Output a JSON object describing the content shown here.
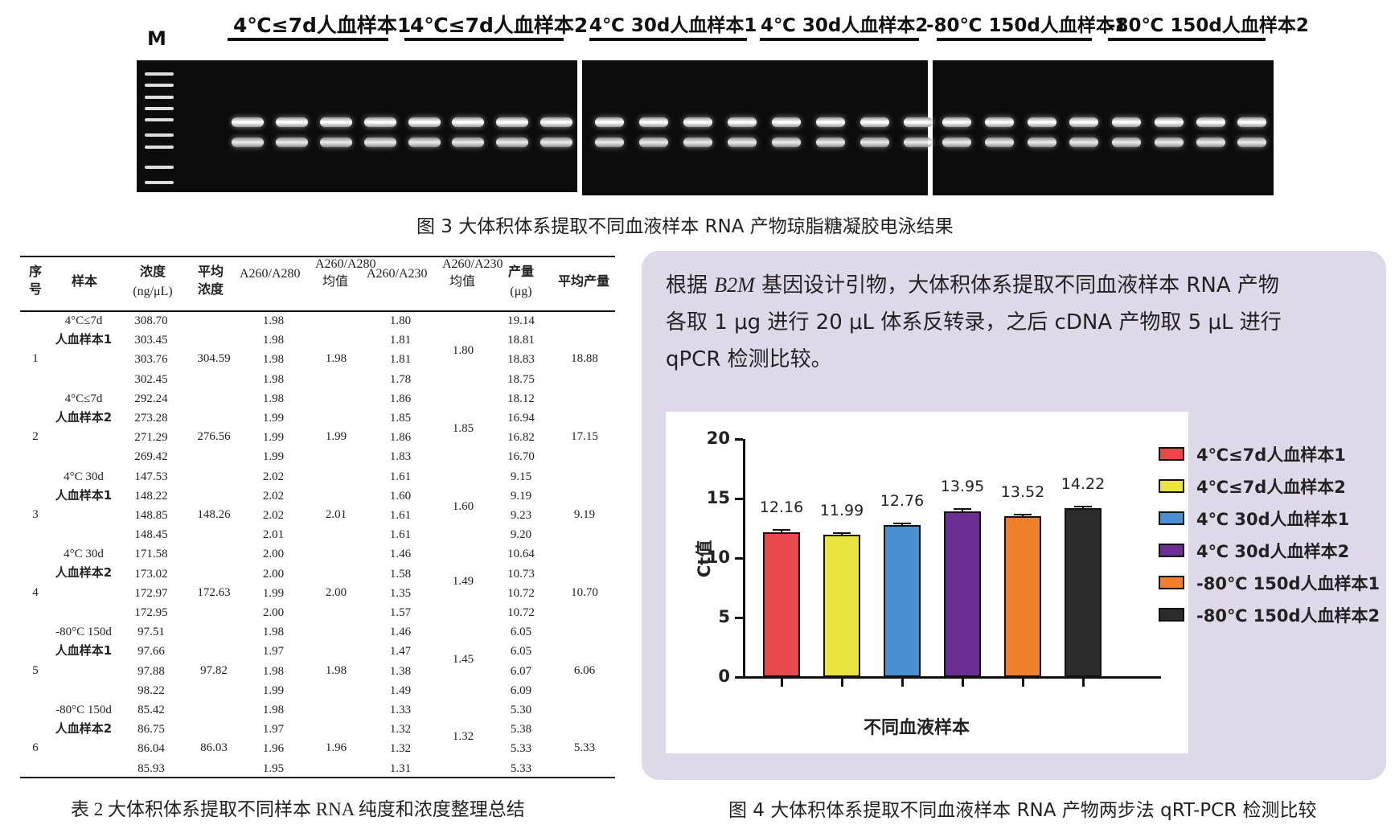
{
  "fig3": {
    "marker": "M",
    "lanes": [
      "4℃≤7d人血样本1",
      "4℃≤7d人血样本2",
      "4℃ 30d人血样本1",
      "4℃ 30d人血样本2",
      "-80℃ 150d人血样本1",
      "-80℃ 150d人血样本2"
    ],
    "caption": "图 3 大体积体系提取不同血液样本 RNA 产物琼脂糖凝胶电泳结果"
  },
  "table": {
    "headers": {
      "no": "序号",
      "sample": "样本",
      "conc": "浓度",
      "conc_unit": "(ng/μL)",
      "avg_conc": "平均浓度",
      "a280": "A260/A280",
      "a280_avg": "A260/A280均值",
      "a230": "A260/A230",
      "a230_avg": "A260/A230均值",
      "yield": "产量",
      "yield_unit": "(μg)",
      "avg_yield": "平均产量"
    },
    "groups": [
      {
        "no": "1",
        "s1": "4°C≤7d",
        "s2": "人血样本1",
        "avg_conc": "304.59",
        "a280_avg": "1.98",
        "a230_avg": "1.80",
        "avg_yield": "18.88",
        "rows": [
          [
            "308.70",
            "1.98",
            "1.80",
            "19.14"
          ],
          [
            "303.45",
            "1.98",
            "1.81",
            "18.81"
          ],
          [
            "303.76",
            "1.98",
            "1.81",
            "18.83"
          ],
          [
            "302.45",
            "1.98",
            "1.78",
            "18.75"
          ]
        ]
      },
      {
        "no": "2",
        "s1": "4°C≤7d",
        "s2": "人血样本2",
        "avg_conc": "276.56",
        "a280_avg": "1.99",
        "a230_avg": "1.85",
        "avg_yield": "17.15",
        "rows": [
          [
            "292.24",
            "1.98",
            "1.86",
            "18.12"
          ],
          [
            "273.28",
            "1.99",
            "1.85",
            "16.94"
          ],
          [
            "271.29",
            "1.99",
            "1.86",
            "16.82"
          ],
          [
            "269.42",
            "1.99",
            "1.83",
            "16.70"
          ]
        ]
      },
      {
        "no": "3",
        "s1": "4°C 30d",
        "s2": "人血样本1",
        "avg_conc": "148.26",
        "a280_avg": "2.01",
        "a230_avg": "1.60",
        "avg_yield": "9.19",
        "rows": [
          [
            "147.53",
            "2.02",
            "1.61",
            "9.15"
          ],
          [
            "148.22",
            "2.02",
            "1.60",
            "9.19"
          ],
          [
            "148.85",
            "2.02",
            "1.61",
            "9.23"
          ],
          [
            "148.45",
            "2.01",
            "1.61",
            "9.20"
          ]
        ]
      },
      {
        "no": "4",
        "s1": "4°C 30d",
        "s2": "人血样本2",
        "avg_conc": "172.63",
        "a280_avg": "2.00",
        "a230_avg": "1.49",
        "avg_yield": "10.70",
        "rows": [
          [
            "171.58",
            "2.00",
            "1.46",
            "10.64"
          ],
          [
            "173.02",
            "2.00",
            "1.58",
            "10.73"
          ],
          [
            "172.97",
            "1.99",
            "1.35",
            "10.72"
          ],
          [
            "172.95",
            "2.00",
            "1.57",
            "10.72"
          ]
        ]
      },
      {
        "no": "5",
        "s1": "-80°C 150d",
        "s2": "人血样本1",
        "avg_conc": "97.82",
        "a280_avg": "1.98",
        "a230_avg": "1.45",
        "avg_yield": "6.06",
        "rows": [
          [
            "97.51",
            "1.98",
            "1.46",
            "6.05"
          ],
          [
            "97.66",
            "1.97",
            "1.47",
            "6.05"
          ],
          [
            "97.88",
            "1.98",
            "1.38",
            "6.07"
          ],
          [
            "98.22",
            "1.99",
            "1.49",
            "6.09"
          ]
        ]
      },
      {
        "no": "6",
        "s1": "-80°C 150d",
        "s2": "人血样本2",
        "avg_conc": "86.03",
        "a280_avg": "1.96",
        "a230_avg": "1.32",
        "avg_yield": "5.33",
        "rows": [
          [
            "85.42",
            "1.98",
            "1.33",
            "5.30"
          ],
          [
            "86.75",
            "1.97",
            "1.32",
            "5.38"
          ],
          [
            "86.04",
            "1.96",
            "1.32",
            "5.33"
          ],
          [
            "85.93",
            "1.95",
            "1.31",
            "5.33"
          ]
        ]
      }
    ],
    "caption": "表 2 大体积体系提取不同样本 RNA 纯度和浓度整理总结"
  },
  "text": {
    "p1a": "根据 ",
    "gene": "B2M",
    "p1b": " 基因设计引物，大体积体系提取不同血液样本 RNA 产物",
    "p2": "各取 1 μg 进行 20 μL 体系反转录，之后 cDNA 产物取 5 μL 进行",
    "p3": "qPCR 检测比较。"
  },
  "chart_data": {
    "type": "bar",
    "categories": [
      "4℃≤7d人血样本1",
      "4℃≤7d人血样本2",
      "4℃ 30d人血样本1",
      "4℃ 30d人血样本2",
      "-80℃ 150d人血样本1",
      "-80℃ 150d人血样本2"
    ],
    "values": [
      12.16,
      11.99,
      12.76,
      13.95,
      13.52,
      14.22
    ],
    "labels": [
      "12.16",
      "11.99",
      "12.76",
      "13.95",
      "13.52",
      "14.22"
    ],
    "errors": [
      0.3,
      0.15,
      0.2,
      0.25,
      0.2,
      0.15
    ],
    "colors": [
      "#e8474c",
      "#e9e43f",
      "#4a8fd1",
      "#6a2d91",
      "#f07f2b",
      "#2b2b2b"
    ],
    "ylabel": "Ct值",
    "xlabel": "不同血液样本",
    "ylim": [
      0,
      20
    ],
    "yticks": [
      "0",
      "5",
      "10",
      "15",
      "20"
    ],
    "legend": "right"
  },
  "fig4": {
    "caption": "图 4 大体积体系提取不同血液样本 RNA 产物两步法 qRT-PCR 检测比较"
  }
}
